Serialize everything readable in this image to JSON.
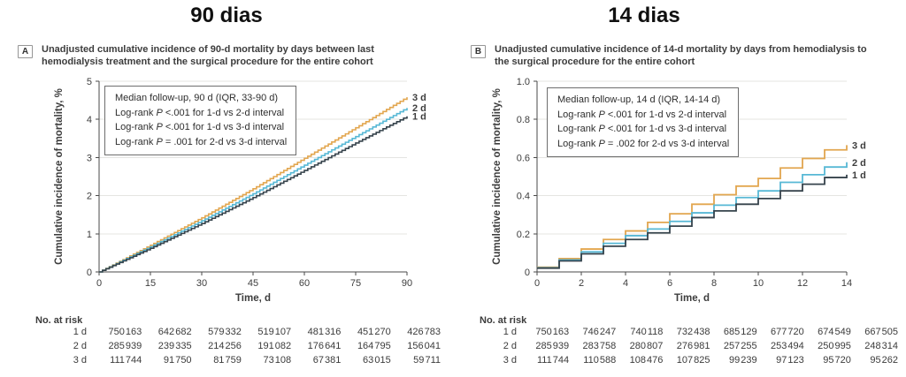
{
  "colors": {
    "axis": "#4a4a4a",
    "gridline": "#e5e5e2",
    "text": "#3d3d3d",
    "series_3d": "#e2a64f",
    "series_2d": "#57b8d5",
    "series_1d": "#36434c"
  },
  "chart_data": [
    {
      "type": "line",
      "panel_label": "A",
      "title": "90 dias",
      "caption": "Unadjusted cumulative incidence of 90-d mortality by days between last hemodialysis treatment and the surgical procedure for the entire cohort",
      "legend": [
        "Median follow-up, 90 d (IQR, 33-90 d)",
        "Log-rank P <.001 for 1-d vs 2-d interval",
        "Log-rank P <.001 for 1-d vs 3-d interval",
        "Log-rank P = .001 for 2-d vs 3-d interval"
      ],
      "xlabel": "Time, d",
      "ylabel": "Cumulative incidence of mortality, %",
      "xticks": [
        0,
        15,
        30,
        45,
        60,
        75,
        90
      ],
      "ytick_labels": [
        "0",
        "1",
        "2",
        "3",
        "4",
        "5"
      ],
      "xlim": [
        0,
        90
      ],
      "ylim": [
        0,
        5
      ],
      "grid": "horizontal",
      "legend_position": "top-left-box",
      "series": [
        {
          "name": "3 d",
          "color": "#e2a64f",
          "x": [
            0,
            15,
            30,
            45,
            60,
            75,
            90
          ],
          "values": [
            0,
            0.7,
            1.42,
            2.18,
            2.98,
            3.78,
            4.58
          ]
        },
        {
          "name": "2 d",
          "color": "#57b8d5",
          "x": [
            0,
            15,
            30,
            45,
            60,
            75,
            90
          ],
          "values": [
            0,
            0.66,
            1.34,
            2.05,
            2.8,
            3.55,
            4.3
          ]
        },
        {
          "name": "1 d",
          "color": "#36434c",
          "x": [
            0,
            15,
            30,
            45,
            60,
            75,
            90
          ],
          "values": [
            0,
            0.62,
            1.27,
            1.95,
            2.66,
            3.38,
            4.08
          ]
        }
      ],
      "risk": {
        "header": "No. at risk",
        "rows": [
          {
            "label": "1 d",
            "values": [
              "750 163",
              "642 682",
              "579 332",
              "519 107",
              "481 316",
              "451 270",
              "426 783"
            ]
          },
          {
            "label": "2 d",
            "values": [
              "285 939",
              "239 335",
              "214 256",
              "191 082",
              "176 641",
              "164 795",
              "156 041"
            ]
          },
          {
            "label": "3 d",
            "values": [
              "111 744",
              "91 750",
              "81 759",
              "73 108",
              "67 381",
              "63 015",
              "59 711"
            ]
          }
        ]
      }
    },
    {
      "type": "line",
      "panel_label": "B",
      "title": "14 dias",
      "caption": "Unadjusted cumulative incidence of 14-d mortality by days from hemodialysis to the surgical procedure for the entire cohort",
      "legend": [
        "Median follow-up, 14 d (IQR, 14-14 d)",
        "Log-rank P <.001 for 1-d vs 2-d interval",
        "Log-rank P <.001 for 1-d vs 3-d interval",
        "Log-rank P = .002 for 2-d vs 3-d interval"
      ],
      "xlabel": "Time, d",
      "ylabel": "Cumulative incidence of mortality, %",
      "xticks": [
        0,
        2,
        4,
        6,
        8,
        10,
        12,
        14
      ],
      "ytick_labels": [
        "0",
        "0.2",
        "0.4",
        "0.6",
        "0.8",
        "1.0"
      ],
      "xlim": [
        0,
        14
      ],
      "ylim": [
        0,
        1.0
      ],
      "grid": "horizontal",
      "legend_position": "top-left-box",
      "series": [
        {
          "name": "3 d",
          "color": "#e2a64f",
          "x": [
            0,
            1,
            2,
            3,
            4,
            5,
            6,
            7,
            8,
            9,
            10,
            11,
            12,
            13,
            14
          ],
          "values": [
            0.025,
            0.07,
            0.12,
            0.17,
            0.215,
            0.26,
            0.305,
            0.355,
            0.405,
            0.45,
            0.49,
            0.545,
            0.595,
            0.64,
            0.665
          ]
        },
        {
          "name": "2 d",
          "color": "#57b8d5",
          "x": [
            0,
            1,
            2,
            3,
            4,
            5,
            6,
            7,
            8,
            9,
            10,
            11,
            12,
            13,
            14
          ],
          "values": [
            0.022,
            0.063,
            0.105,
            0.15,
            0.19,
            0.225,
            0.265,
            0.31,
            0.35,
            0.39,
            0.425,
            0.47,
            0.51,
            0.55,
            0.575
          ]
        },
        {
          "name": "1 d",
          "color": "#36434c",
          "x": [
            0,
            1,
            2,
            3,
            4,
            5,
            6,
            7,
            8,
            9,
            10,
            11,
            12,
            13,
            14
          ],
          "values": [
            0.02,
            0.058,
            0.095,
            0.135,
            0.17,
            0.205,
            0.24,
            0.285,
            0.32,
            0.355,
            0.385,
            0.425,
            0.46,
            0.495,
            0.51
          ]
        }
      ],
      "risk": {
        "header": "No. at risk",
        "rows": [
          {
            "label": "1 d",
            "values": [
              "750 163",
              "746 247",
              "740 118",
              "732 438",
              "685 129",
              "677 720",
              "674 549",
              "667 505"
            ]
          },
          {
            "label": "2 d",
            "values": [
              "285 939",
              "283 758",
              "280 807",
              "276 981",
              "257 255",
              "253 494",
              "250 995",
              "248 314"
            ]
          },
          {
            "label": "3 d",
            "values": [
              "111 744",
              "110 588",
              "108 476",
              "107 825",
              "99 239",
              "97 123",
              "95 720",
              "95 262"
            ]
          }
        ]
      }
    }
  ]
}
